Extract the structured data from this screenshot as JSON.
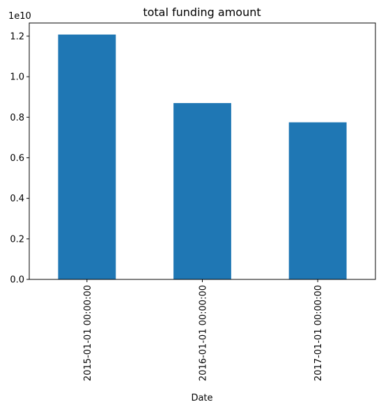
{
  "chart_data": {
    "type": "bar",
    "title": "total funding amount",
    "xlabel": "Date",
    "ylabel": "",
    "y_scale_label": "1e10",
    "categories": [
      "2015-01-01 00:00:00",
      "2016-01-01 00:00:00",
      "2017-01-01 00:00:00"
    ],
    "values": [
      12080000000,
      8700000000,
      7750000000
    ],
    "ylim": [
      0,
      12650000000
    ],
    "yticks": [
      0,
      2000000000,
      4000000000,
      6000000000,
      8000000000,
      10000000000,
      12000000000
    ],
    "ytick_labels": [
      "0.0",
      "0.2",
      "0.4",
      "0.6",
      "0.8",
      "1.0",
      "1.2"
    ],
    "grid": false,
    "legend": false,
    "bar_color": "#1f77b4"
  }
}
